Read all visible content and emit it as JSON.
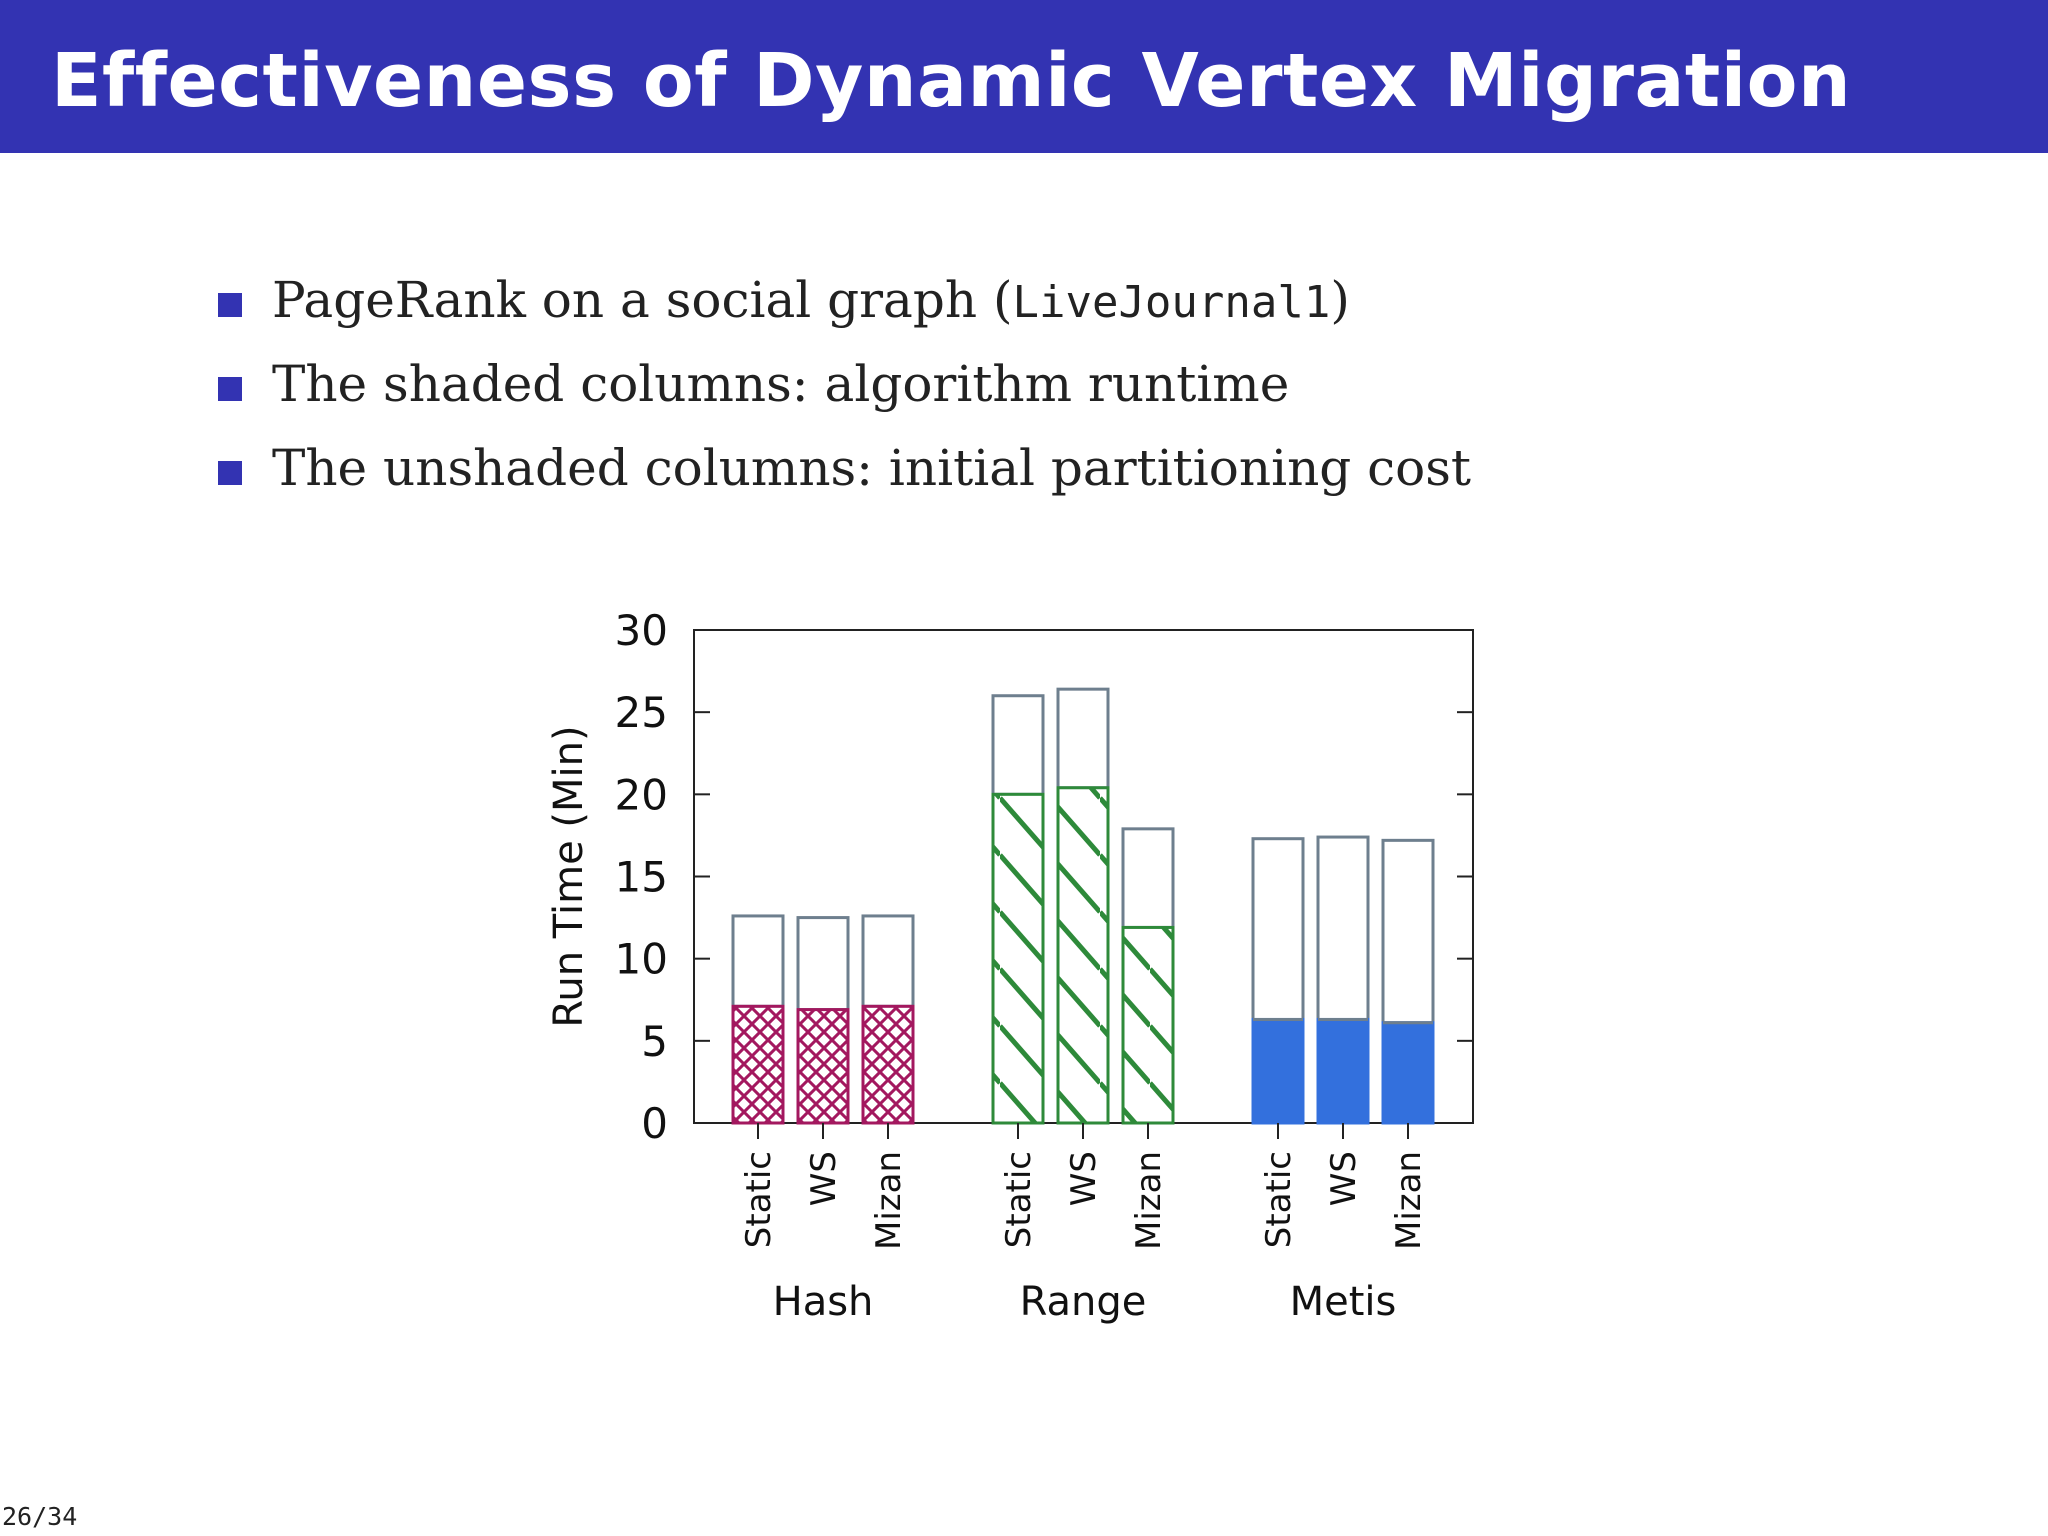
{
  "slide": {
    "title": "Effectiveness of Dynamic Vertex Migration",
    "page_number": "26/34"
  },
  "bullets": [
    {
      "before": "PageRank on a social graph (",
      "code": "LiveJournal1",
      "after": ")"
    },
    {
      "before": "The shaded columns: algorithm runtime",
      "code": "",
      "after": ""
    },
    {
      "before": "The unshaded columns: initial partitioning cost",
      "code": "",
      "after": ""
    }
  ],
  "colors": {
    "title_bar": "#3333b2",
    "bullet": "#3333b2",
    "hash": "#a3185f",
    "range": "#2e8a3a",
    "metis": "#3370dd",
    "unshaded_outline": "#6e7f8e"
  },
  "chart_data": {
    "type": "bar",
    "stacked": true,
    "ylabel": "Run Time (Min)",
    "ylim": [
      0,
      30
    ],
    "yticks": [
      "0",
      "5",
      "10",
      "15",
      "20",
      "25",
      "30"
    ],
    "groups": [
      {
        "name": "Hash",
        "pattern": "crosshatch",
        "bars": [
          {
            "label": "Static",
            "runtime": 7.1,
            "partitioning": 5.5
          },
          {
            "label": "WS",
            "runtime": 6.9,
            "partitioning": 5.6
          },
          {
            "label": "Mizan",
            "runtime": 7.1,
            "partitioning": 5.5
          }
        ]
      },
      {
        "name": "Range",
        "pattern": "diagonal",
        "bars": [
          {
            "label": "Static",
            "runtime": 20.0,
            "partitioning": 6.0
          },
          {
            "label": "WS",
            "runtime": 20.4,
            "partitioning": 6.0
          },
          {
            "label": "Mizan",
            "runtime": 11.9,
            "partitioning": 6.0
          }
        ]
      },
      {
        "name": "Metis",
        "pattern": "solid",
        "bars": [
          {
            "label": "Static",
            "runtime": 6.3,
            "partitioning": 11.0
          },
          {
            "label": "WS",
            "runtime": 6.3,
            "partitioning": 11.1
          },
          {
            "label": "Mizan",
            "runtime": 6.1,
            "partitioning": 11.1
          }
        ]
      }
    ]
  }
}
